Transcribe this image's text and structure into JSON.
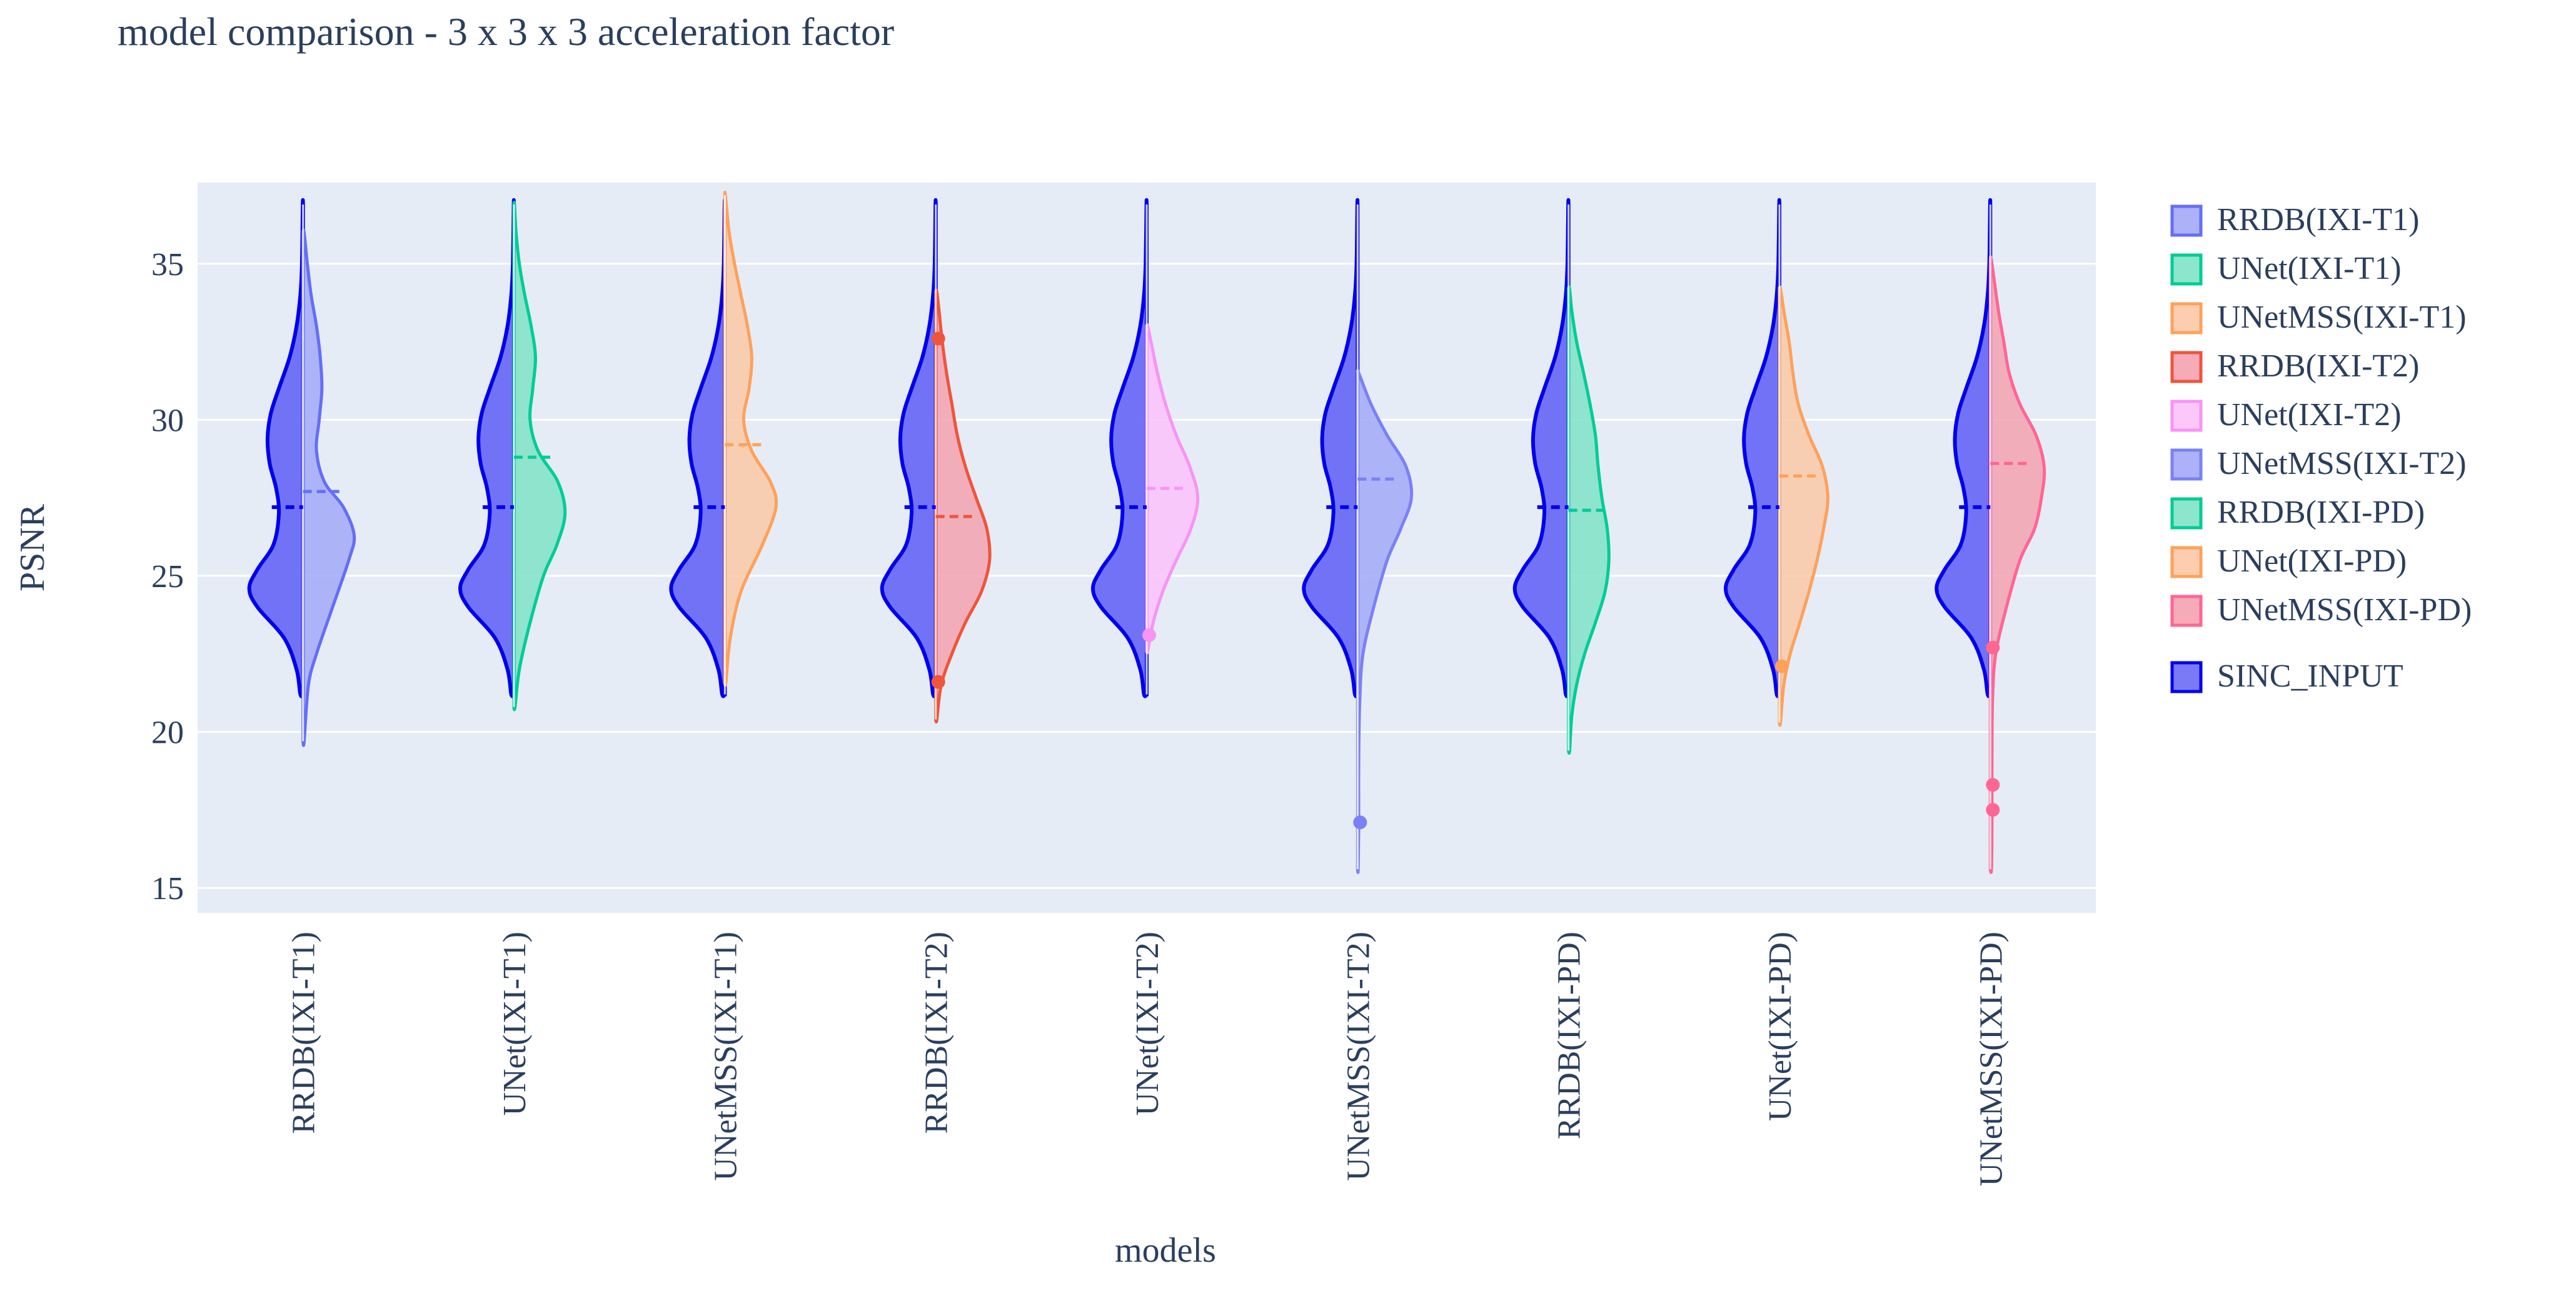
{
  "chart_data": {
    "type": "violin",
    "title": "model comparison - 3 x 3 x 3 acceleration factor",
    "xlabel": "models",
    "ylabel": "PSNR",
    "ylim": [
      14.2,
      37.6
    ],
    "yticks": [
      15,
      20,
      25,
      30,
      35
    ],
    "categories": [
      "RRDB(IXI-T1)",
      "UNet(IXI-T1)",
      "UNetMSS(IXI-T1)",
      "RRDB(IXI-T2)",
      "UNet(IXI-T2)",
      "UNetMSS(IXI-T2)",
      "RRDB(IXI-PD)",
      "UNet(IXI-PD)",
      "UNetMSS(IXI-PD)"
    ],
    "baseline": {
      "name": "SINC_INPUT",
      "color": "#0000ee",
      "fill": "#6b6bf5",
      "min": 21.2,
      "max": 36.9,
      "mean": 27.2,
      "profile": [
        [
          21.2,
          0.05
        ],
        [
          22.0,
          0.12
        ],
        [
          23.0,
          0.35
        ],
        [
          24.0,
          0.85
        ],
        [
          24.6,
          1.0
        ],
        [
          25.2,
          0.85
        ],
        [
          26.0,
          0.55
        ],
        [
          27.0,
          0.45
        ],
        [
          27.8,
          0.5
        ],
        [
          28.6,
          0.62
        ],
        [
          29.4,
          0.66
        ],
        [
          30.2,
          0.6
        ],
        [
          31.0,
          0.45
        ],
        [
          32.0,
          0.25
        ],
        [
          33.0,
          0.12
        ],
        [
          34.0,
          0.05
        ],
        [
          35.0,
          0.02
        ],
        [
          36.9,
          0.005
        ]
      ]
    },
    "series": [
      {
        "name": "RRDB(IXI-T1)",
        "color": "#636efa",
        "fill": "#a3a9f7",
        "min": 19.7,
        "max": 36.0,
        "mean": 27.7,
        "profile": [
          [
            19.7,
            0.02
          ],
          [
            21.5,
            0.1
          ],
          [
            22.5,
            0.25
          ],
          [
            24.0,
            0.55
          ],
          [
            25.5,
            0.85
          ],
          [
            26.3,
            0.95
          ],
          [
            27.2,
            0.75
          ],
          [
            28.0,
            0.4
          ],
          [
            29.0,
            0.25
          ],
          [
            30.0,
            0.3
          ],
          [
            31.0,
            0.35
          ],
          [
            32.0,
            0.32
          ],
          [
            33.0,
            0.25
          ],
          [
            34.0,
            0.15
          ],
          [
            35.0,
            0.08
          ],
          [
            36.0,
            0.02
          ]
        ],
        "outliers": []
      },
      {
        "name": "UNet(IXI-T1)",
        "color": "#00cc96",
        "fill": "#7fe3c6",
        "min": 20.8,
        "max": 36.9,
        "mean": 28.8,
        "profile": [
          [
            20.8,
            0.02
          ],
          [
            22.0,
            0.1
          ],
          [
            23.5,
            0.3
          ],
          [
            25.0,
            0.55
          ],
          [
            26.0,
            0.8
          ],
          [
            27.0,
            0.95
          ],
          [
            28.0,
            0.82
          ],
          [
            29.0,
            0.45
          ],
          [
            30.0,
            0.3
          ],
          [
            31.0,
            0.35
          ],
          [
            32.0,
            0.4
          ],
          [
            33.0,
            0.32
          ],
          [
            34.0,
            0.2
          ],
          [
            35.0,
            0.1
          ],
          [
            36.0,
            0.04
          ],
          [
            36.9,
            0.01
          ]
        ],
        "outliers": []
      },
      {
        "name": "UNetMSS(IXI-T1)",
        "color": "#ffa15a",
        "fill": "#fcc9a6",
        "min": 21.6,
        "max": 37.2,
        "mean": 29.2,
        "profile": [
          [
            21.6,
            0.02
          ],
          [
            23.0,
            0.1
          ],
          [
            24.5,
            0.3
          ],
          [
            26.0,
            0.7
          ],
          [
            27.2,
            0.95
          ],
          [
            28.0,
            0.85
          ],
          [
            29.0,
            0.5
          ],
          [
            30.0,
            0.35
          ],
          [
            31.0,
            0.45
          ],
          [
            32.0,
            0.5
          ],
          [
            33.0,
            0.42
          ],
          [
            34.0,
            0.3
          ],
          [
            35.0,
            0.18
          ],
          [
            36.0,
            0.08
          ],
          [
            37.2,
            0.01
          ]
        ],
        "outliers": []
      },
      {
        "name": "RRDB(IXI-T2)",
        "color": "#ef553b",
        "fill": "#f4a2b0",
        "min": 20.4,
        "max": 34.1,
        "mean": 26.9,
        "profile": [
          [
            20.4,
            0.02
          ],
          [
            21.5,
            0.1
          ],
          [
            22.5,
            0.3
          ],
          [
            23.5,
            0.55
          ],
          [
            24.5,
            0.85
          ],
          [
            25.5,
            1.0
          ],
          [
            26.5,
            0.95
          ],
          [
            27.5,
            0.75
          ],
          [
            28.5,
            0.55
          ],
          [
            29.5,
            0.4
          ],
          [
            30.5,
            0.3
          ],
          [
            31.5,
            0.2
          ],
          [
            32.5,
            0.12
          ],
          [
            33.5,
            0.06
          ],
          [
            34.1,
            0.02
          ]
        ],
        "outliers": [
          32.6,
          21.6
        ]
      },
      {
        "name": "UNet(IXI-T2)",
        "color": "#f894f5",
        "fill": "#fcc2fa",
        "min": 22.6,
        "max": 33.0,
        "mean": 27.8,
        "profile": [
          [
            22.6,
            0.02
          ],
          [
            23.5,
            0.12
          ],
          [
            24.5,
            0.3
          ],
          [
            25.5,
            0.55
          ],
          [
            26.5,
            0.82
          ],
          [
            27.5,
            0.95
          ],
          [
            28.5,
            0.8
          ],
          [
            29.5,
            0.55
          ],
          [
            30.5,
            0.35
          ],
          [
            31.5,
            0.2
          ],
          [
            32.5,
            0.08
          ],
          [
            33.0,
            0.02
          ]
        ],
        "outliers": [
          23.1
        ]
      },
      {
        "name": "UNetMSS(IXI-T2)",
        "color": "#7a81f6",
        "fill": "#a3a9f7",
        "min": 15.6,
        "max": 31.5,
        "mean": 28.1,
        "profile": [
          [
            15.6,
            0.01
          ],
          [
            17.0,
            0.02
          ],
          [
            19.0,
            0.02
          ],
          [
            21.0,
            0.04
          ],
          [
            22.5,
            0.1
          ],
          [
            24.0,
            0.3
          ],
          [
            25.5,
            0.55
          ],
          [
            26.5,
            0.8
          ],
          [
            27.5,
            1.0
          ],
          [
            28.5,
            0.9
          ],
          [
            29.5,
            0.55
          ],
          [
            30.5,
            0.25
          ],
          [
            31.5,
            0.02
          ]
        ],
        "outliers": [
          17.1
        ]
      },
      {
        "name": "RRDB(IXI-PD)",
        "color": "#00cc96",
        "fill": "#7fe3c6",
        "min": 19.4,
        "max": 34.2,
        "mean": 27.1,
        "profile": [
          [
            19.4,
            0.02
          ],
          [
            20.5,
            0.06
          ],
          [
            21.5,
            0.15
          ],
          [
            22.5,
            0.3
          ],
          [
            23.5,
            0.5
          ],
          [
            24.5,
            0.68
          ],
          [
            25.5,
            0.75
          ],
          [
            26.5,
            0.72
          ],
          [
            27.5,
            0.62
          ],
          [
            28.5,
            0.55
          ],
          [
            29.5,
            0.5
          ],
          [
            30.5,
            0.4
          ],
          [
            31.5,
            0.28
          ],
          [
            32.5,
            0.15
          ],
          [
            33.5,
            0.06
          ],
          [
            34.2,
            0.02
          ]
        ],
        "outliers": []
      },
      {
        "name": "UNet(IXI-PD)",
        "color": "#ffa15a",
        "fill": "#fcc9a6",
        "min": 20.3,
        "max": 34.2,
        "mean": 28.2,
        "profile": [
          [
            20.3,
            0.02
          ],
          [
            21.5,
            0.08
          ],
          [
            22.5,
            0.2
          ],
          [
            23.5,
            0.38
          ],
          [
            24.5,
            0.55
          ],
          [
            25.5,
            0.7
          ],
          [
            26.5,
            0.82
          ],
          [
            27.5,
            0.9
          ],
          [
            28.5,
            0.8
          ],
          [
            29.5,
            0.55
          ],
          [
            30.5,
            0.35
          ],
          [
            31.5,
            0.25
          ],
          [
            32.5,
            0.18
          ],
          [
            33.5,
            0.08
          ],
          [
            34.2,
            0.02
          ]
        ],
        "outliers": [
          22.1
        ]
      },
      {
        "name": "UNetMSS(IXI-PD)",
        "color": "#ff6692",
        "fill": "#f4a2b0",
        "min": 15.6,
        "max": 35.1,
        "mean": 28.6,
        "profile": [
          [
            15.6,
            0.02
          ],
          [
            17.0,
            0.03
          ],
          [
            19.0,
            0.03
          ],
          [
            21.0,
            0.04
          ],
          [
            22.5,
            0.1
          ],
          [
            24.0,
            0.3
          ],
          [
            25.5,
            0.55
          ],
          [
            26.5,
            0.82
          ],
          [
            27.5,
            0.95
          ],
          [
            28.5,
            1.0
          ],
          [
            29.5,
            0.85
          ],
          [
            30.5,
            0.55
          ],
          [
            31.5,
            0.35
          ],
          [
            32.5,
            0.25
          ],
          [
            33.5,
            0.15
          ],
          [
            35.1,
            0.02
          ]
        ],
        "outliers": [
          22.7,
          18.3,
          17.5
        ]
      }
    ],
    "legend": {
      "items": [
        "RRDB(IXI-T1)",
        "UNet(IXI-T1)",
        "UNetMSS(IXI-T1)",
        "RRDB(IXI-T2)",
        "UNet(IXI-T2)",
        "UNetMSS(IXI-T2)",
        "RRDB(IXI-PD)",
        "UNet(IXI-PD)",
        "UNetMSS(IXI-PD)",
        "SINC_INPUT"
      ],
      "colors": [
        "#636efa",
        "#00cc96",
        "#ffa15a",
        "#ef553b",
        "#f894f5",
        "#7a81f6",
        "#00cc96",
        "#ffa15a",
        "#ff6692",
        "#0000ee"
      ],
      "fills": [
        "#a3a9f7",
        "#7fe3c6",
        "#fcc9a6",
        "#f4a2b0",
        "#fcc2fa",
        "#a3a9f7",
        "#7fe3c6",
        "#fcc9a6",
        "#f4a2b0",
        "#6b6bf5"
      ],
      "position": "right"
    },
    "plot_background": "#e5ecf6",
    "gridline_color": "#ffffff"
  }
}
